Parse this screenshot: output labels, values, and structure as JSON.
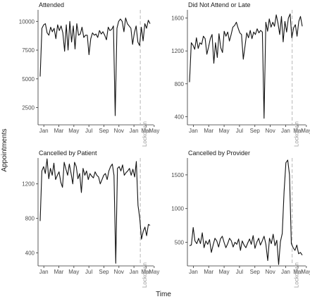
{
  "labels": {
    "y_axis": "Appointments",
    "x_axis": "Time"
  },
  "chart_data": [
    {
      "type": "line",
      "title": "Attended",
      "x_ticks": [
        "Jan",
        "Mar",
        "May",
        "Jul",
        "Sep",
        "Nov",
        "Jan",
        "Mar",
        "May"
      ],
      "y_ticks": [
        2500,
        5000,
        7500,
        10000
      ],
      "ylim": [
        1000,
        11000
      ],
      "annotation": "Lockdown",
      "series": [
        {
          "values": [
            5200,
            9400,
            9700,
            9800,
            9000,
            8800,
            9500,
            9100,
            9400,
            8500,
            9700,
            9200,
            9600,
            9000,
            7400,
            9700,
            7500,
            10000,
            8200,
            9600,
            7600,
            9800,
            8800,
            8900,
            9500,
            8600,
            8800,
            8800,
            7100,
            8500,
            9000,
            8800,
            8900,
            8600,
            9200,
            8900,
            9100,
            8800,
            8400,
            9500,
            9200,
            9300,
            9600,
            1800,
            9400,
            10000,
            10200,
            10000,
            9100,
            10300,
            9800,
            9600,
            9400,
            8000,
            9000,
            9600,
            8200,
            7900,
            9500,
            8300,
            9800,
            9400,
            10100,
            9800
          ]
        }
      ]
    },
    {
      "type": "line",
      "title": "Did Not Attend or Late",
      "x_ticks": [
        "Jan",
        "Mar",
        "May",
        "Jul",
        "Sep",
        "Nov",
        "Jan",
        "Mar",
        "May"
      ],
      "y_ticks": [
        400,
        800,
        1200,
        1600
      ],
      "ylim": [
        300,
        1700
      ],
      "annotation": "Lockdown",
      "series": [
        {
          "values": [
            820,
            1300,
            1270,
            1220,
            1360,
            1230,
            1300,
            1280,
            1380,
            1350,
            1160,
            1250,
            1350,
            1400,
            1050,
            1300,
            1120,
            1410,
            1240,
            1180,
            1440,
            1380,
            1430,
            1320,
            1400,
            1490,
            1510,
            1550,
            1480,
            1420,
            1400,
            1100,
            1260,
            1420,
            1360,
            1450,
            1350,
            1430,
            1400,
            1470,
            1420,
            1450,
            1430,
            380,
            1550,
            1440,
            1590,
            1490,
            1550,
            1500,
            1640,
            1540,
            1400,
            1620,
            1310,
            1560,
            1430,
            1600,
            1650,
            1360,
            1480,
            1520,
            1380,
            1560,
            1620,
            1500
          ]
        }
      ]
    },
    {
      "type": "line",
      "title": "Cancelled by Patient",
      "x_ticks": [
        "Jan",
        "Mar",
        "May",
        "Jul",
        "Sep",
        "Nov",
        "Jan",
        "Mar",
        "May"
      ],
      "y_ticks": [
        400,
        800,
        1200
      ],
      "ylim": [
        250,
        1500
      ],
      "annotation": "Lockdown",
      "series": [
        {
          "values": [
            770,
            1350,
            1400,
            1320,
            1490,
            1260,
            1380,
            1300,
            1440,
            1250,
            1300,
            1340,
            1220,
            1160,
            1450,
            1370,
            1300,
            1430,
            1320,
            1200,
            1450,
            1400,
            1260,
            1320,
            1100,
            1380,
            1300,
            1350,
            1250,
            1320,
            1290,
            1270,
            1340,
            1300,
            1280,
            1200,
            1250,
            1300,
            1320,
            1250,
            1350,
            1400,
            1430,
            1300,
            280,
            1380,
            1400,
            1350,
            1420,
            1300,
            1330,
            1350,
            1380,
            1300,
            1370,
            1280,
            1460,
            950,
            800,
            560,
            650,
            700,
            600,
            730,
            720
          ]
        }
      ]
    },
    {
      "type": "line",
      "title": "Cancelled by Provider",
      "x_ticks": [
        "Jan",
        "Mar",
        "May",
        "Jul",
        "Sep",
        "Nov",
        "Jan",
        "Mar",
        "May"
      ],
      "y_ticks": [
        500,
        1000,
        1500
      ],
      "ylim": [
        150,
        1750
      ],
      "annotation": "Lockdown",
      "series": [
        {
          "values": [
            450,
            460,
            720,
            520,
            480,
            560,
            480,
            640,
            420,
            520,
            470,
            540,
            350,
            460,
            560,
            520,
            430,
            550,
            590,
            500,
            420,
            480,
            560,
            520,
            430,
            500,
            470,
            550,
            380,
            520,
            460,
            420,
            490,
            550,
            470,
            600,
            410,
            500,
            560,
            460,
            520,
            590,
            470,
            230,
            560,
            480,
            620,
            450,
            530,
            170,
            510,
            630,
            1250,
            1680,
            1720,
            1500,
            480,
            420,
            380,
            460,
            330,
            350,
            310
          ]
        }
      ]
    }
  ]
}
